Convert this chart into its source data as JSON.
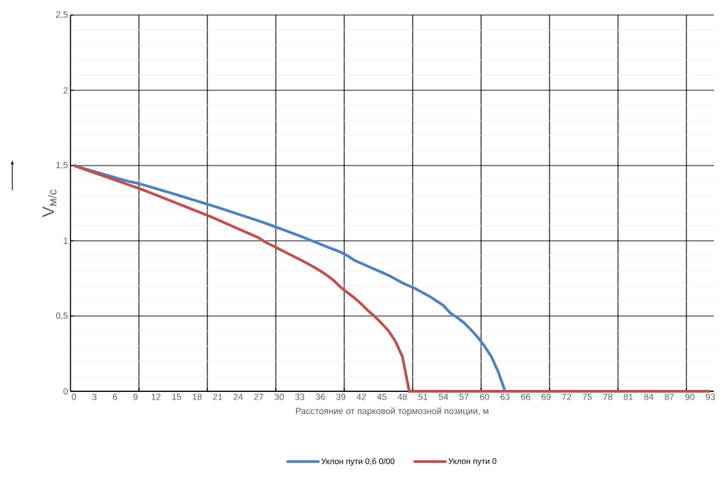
{
  "chart_data": {
    "type": "line",
    "xlabel": "Расстояние от парковой тормозной позиции, м",
    "ylabel": "V$_{м/с}$",
    "categories": [
      "0",
      null,
      null,
      "3",
      null,
      null,
      "6",
      null,
      null,
      "9",
      null,
      null,
      "12",
      null,
      null,
      "15",
      null,
      null,
      "18",
      null,
      null,
      "21",
      null,
      null,
      "24",
      null,
      null,
      "27",
      null,
      null,
      "30",
      null,
      null,
      "33",
      null,
      null,
      "36",
      null,
      null,
      "39",
      null,
      null,
      "42",
      null,
      null,
      "45",
      null,
      null,
      "48",
      null,
      null,
      "51",
      null,
      null,
      "54",
      null,
      null,
      "57",
      null,
      null,
      "60",
      null,
      null,
      "63",
      null,
      null,
      "66",
      null,
      null,
      "69",
      null,
      null,
      "72",
      null,
      null,
      "75",
      null,
      null,
      "78",
      null,
      null,
      "81",
      null,
      null,
      "84",
      null,
      null,
      "87",
      null,
      null,
      "90",
      null,
      null,
      "93"
    ],
    "series": [
      {
        "name": "Уклон пути 0,6 0/00",
        "color": "#4f81bd",
        "values": [
          1.5,
          1.487,
          1.473,
          1.46,
          1.447,
          1.433,
          1.42,
          1.407,
          1.395,
          1.385,
          1.373,
          1.36,
          1.347,
          1.333,
          1.32,
          1.306,
          1.292,
          1.278,
          1.264,
          1.25,
          1.236,
          1.222,
          1.207,
          1.192,
          1.177,
          1.162,
          1.147,
          1.132,
          1.116,
          1.1,
          1.083,
          1.066,
          1.049,
          1.032,
          1.014,
          0.996,
          0.978,
          0.96,
          0.942,
          0.924,
          0.9,
          0.87,
          0.85,
          0.83,
          0.81,
          0.79,
          0.77,
          0.745,
          0.72,
          0.7,
          0.68,
          0.655,
          0.63,
          0.6,
          0.57,
          0.52,
          0.49,
          0.455,
          0.41,
          0.36,
          0.3,
          0.23,
          0.13,
          0,
          null,
          null,
          null,
          null,
          null,
          null,
          null,
          null,
          null,
          null,
          null,
          null,
          null,
          null,
          null,
          null,
          null,
          null,
          null,
          null,
          null,
          null,
          null,
          null,
          null,
          null,
          null,
          null,
          null,
          null
        ]
      },
      {
        "name": "Уклон пути 0",
        "color": "#c0504d",
        "values": [
          1.5,
          1.484,
          1.468,
          1.452,
          1.436,
          1.42,
          1.404,
          1.388,
          1.372,
          1.356,
          1.34,
          1.322,
          1.304,
          1.286,
          1.268,
          1.25,
          1.232,
          1.214,
          1.196,
          1.178,
          1.16,
          1.14,
          1.12,
          1.1,
          1.08,
          1.06,
          1.04,
          1.02,
          0.99,
          0.968,
          0.945,
          0.922,
          0.899,
          0.876,
          0.852,
          0.827,
          0.8,
          0.77,
          0.735,
          0.69,
          0.655,
          0.62,
          0.58,
          0.535,
          0.495,
          0.45,
          0.4,
          0.33,
          0.23,
          0,
          0,
          0,
          0,
          0,
          0,
          0,
          0,
          0,
          0,
          0,
          0,
          0,
          0,
          0,
          0,
          0,
          0,
          0,
          0,
          0,
          0,
          0,
          0,
          0,
          0,
          0,
          0,
          0,
          0,
          0,
          0,
          0,
          0,
          0,
          0,
          0,
          0,
          0,
          0,
          0,
          0,
          0,
          0,
          0
        ]
      }
    ],
    "ylim": [
      0,
      2.5
    ],
    "yticks": [
      0,
      {
        "value": 0.5,
        "label": "0,5"
      },
      1,
      {
        "value": 1.5,
        "label": "1,5"
      },
      2,
      {
        "value": 2.5,
        "label": "2,5"
      }
    ],
    "grid": true,
    "legend": "bottom",
    "line_style": "solid"
  }
}
